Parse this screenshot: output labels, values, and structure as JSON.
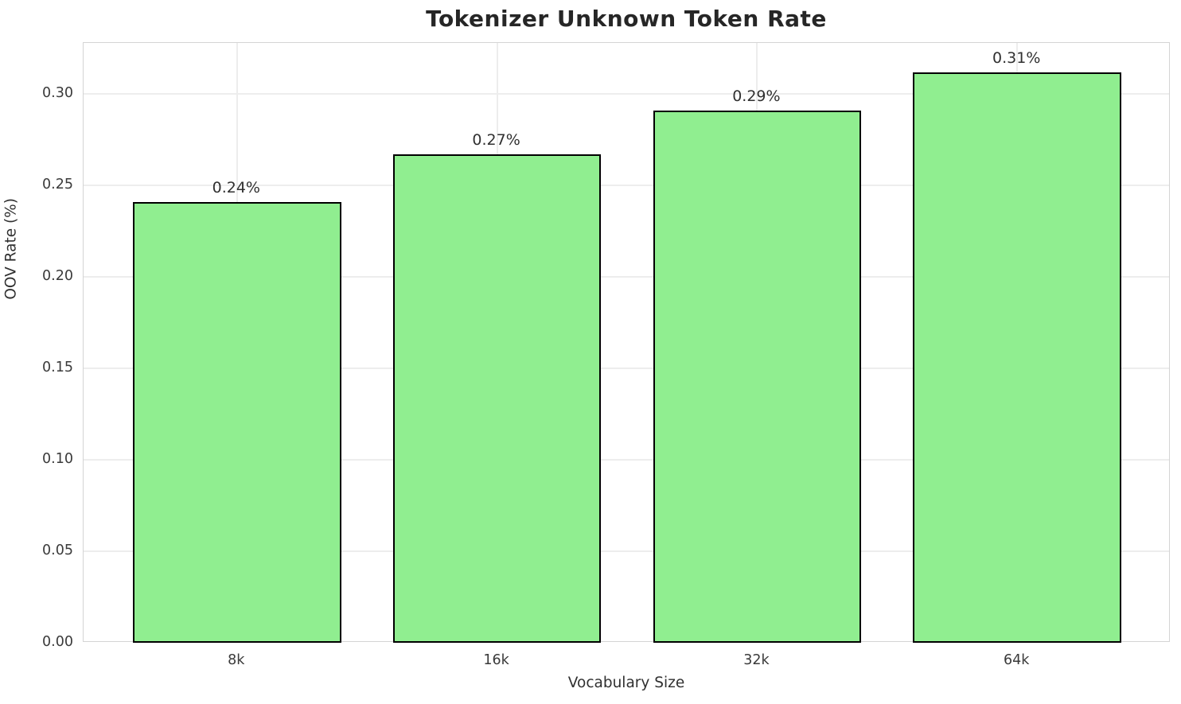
{
  "chart_data": {
    "type": "bar",
    "title": "Tokenizer Unknown Token Rate",
    "xlabel": "Vocabulary Size",
    "ylabel": "OOV Rate (%)",
    "categories": [
      "8k",
      "16k",
      "32k",
      "64k"
    ],
    "values": [
      0.241,
      0.267,
      0.291,
      0.312
    ],
    "bar_labels": [
      "0.24%",
      "0.27%",
      "0.29%",
      "0.31%"
    ],
    "ytick_labels": [
      "0.00",
      "0.05",
      "0.10",
      "0.15",
      "0.20",
      "0.25",
      "0.30"
    ],
    "yticks": [
      0.0,
      0.05,
      0.1,
      0.15,
      0.2,
      0.25,
      0.3
    ],
    "ylim": [
      0,
      0.328
    ],
    "grid": true,
    "legend": "none",
    "bar_color": "#90EE90",
    "bar_edge_color": "#000000",
    "grid_color": "#ededed",
    "frame_color": "#d4d4d4",
    "text_color": "#303030"
  }
}
